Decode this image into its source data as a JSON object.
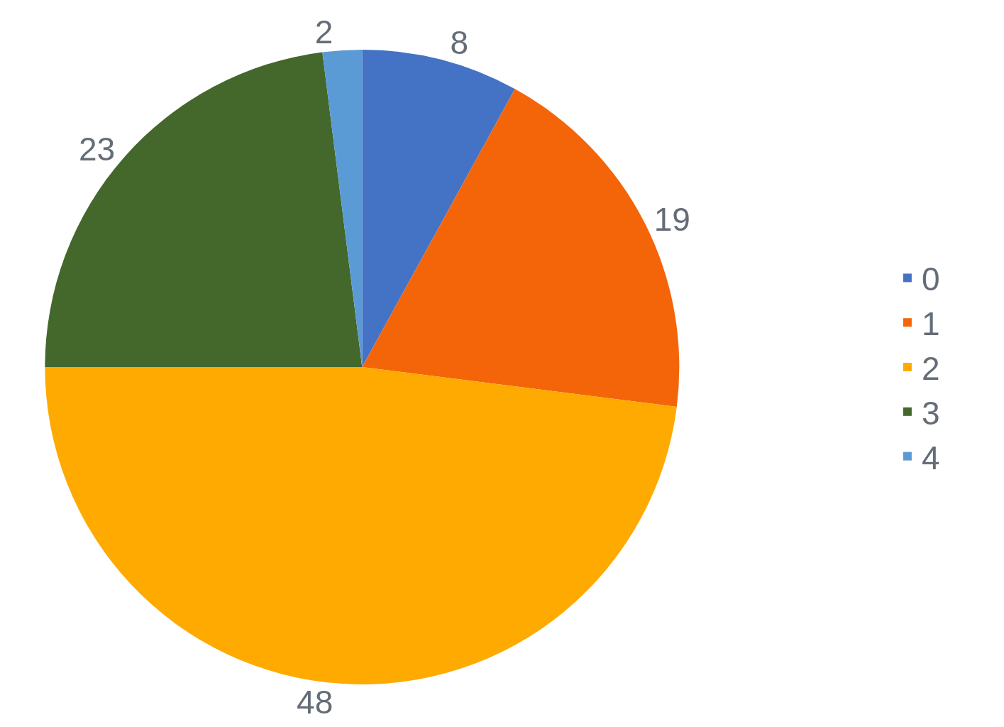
{
  "chart_data": {
    "type": "pie",
    "categories": [
      "0",
      "1",
      "2",
      "3",
      "4"
    ],
    "values": [
      8,
      19,
      48,
      23,
      2
    ],
    "colors": [
      "#4472c4",
      "#f4650a",
      "#ffaa00",
      "#44672c",
      "#5b9bd5"
    ],
    "data_labels": true,
    "legend": "right"
  }
}
